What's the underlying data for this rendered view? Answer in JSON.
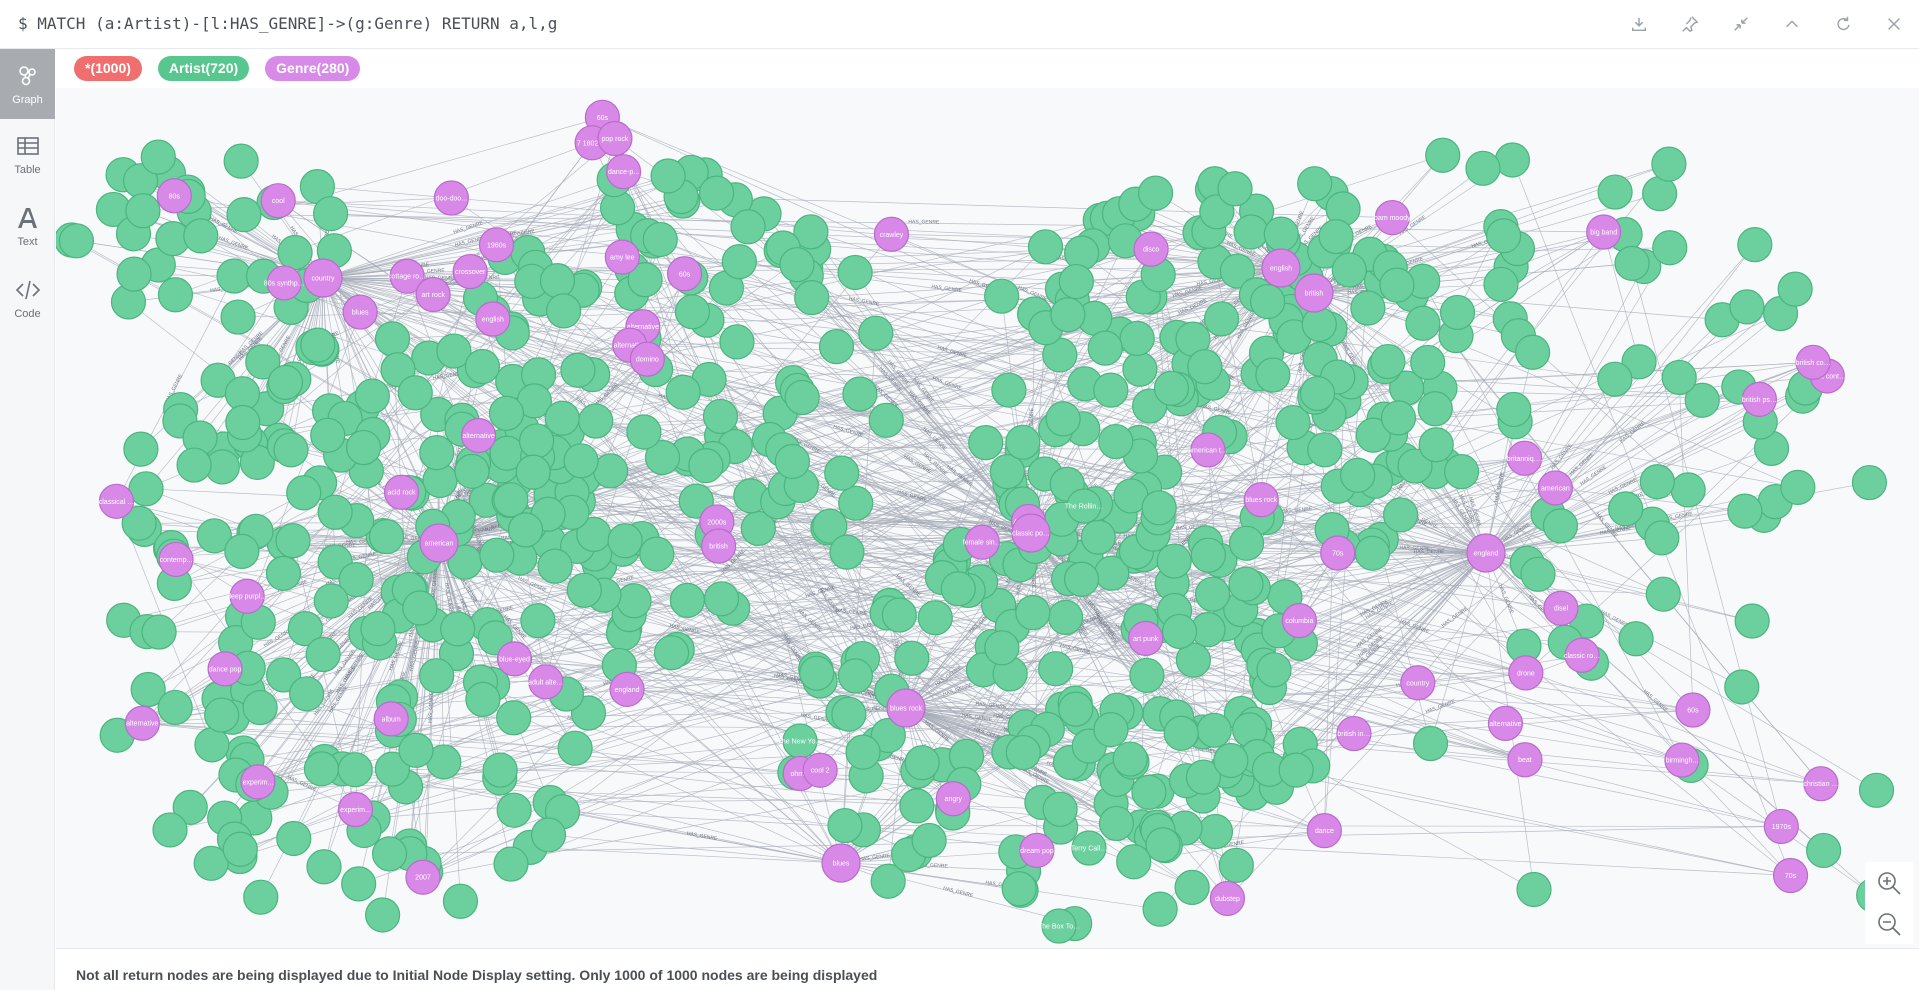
{
  "query": {
    "text": "$ MATCH (a:Artist)-[l:HAS_GENRE]->(g:Genre) RETURN a,l,g"
  },
  "toolbar": {
    "buttons": [
      {
        "name": "download-icon",
        "label": "download"
      },
      {
        "name": "pin-icon",
        "label": "pin"
      },
      {
        "name": "collapse-icon",
        "label": "collapse"
      },
      {
        "name": "chevron-up-icon",
        "label": "up"
      },
      {
        "name": "rerun-icon",
        "label": "rerun"
      },
      {
        "name": "close-icon",
        "label": "close"
      }
    ]
  },
  "sidebar": {
    "items": [
      {
        "label": "Graph",
        "icon": "graph-icon",
        "active": true
      },
      {
        "label": "Table",
        "icon": "table-icon",
        "active": false
      },
      {
        "label": "Text",
        "icon": "text-icon",
        "active": false
      },
      {
        "label": "Code",
        "icon": "code-icon",
        "active": false
      }
    ]
  },
  "legend": {
    "all": "*(1000)",
    "artist": "Artist(720)",
    "genre": "Genre(280)"
  },
  "colors": {
    "artist_node": "#6bcf9e",
    "genre_node": "#d889e8",
    "all_pill": "#f06e6e",
    "edge": "#a5abb6"
  },
  "graph": {
    "relationship_label": "HAS_GENRE",
    "hub_genres": [
      "american",
      "classic pop and rock",
      "british",
      "english",
      "country",
      "blues",
      "england",
      "blues rock"
    ],
    "genre_labels": [
      "cool",
      "contemp...",
      "disco",
      "american thrash",
      "doo-doo...",
      "album",
      "dream pop",
      "country",
      "cottage rock",
      "crossover",
      "ohmm",
      "alternative",
      "70s",
      "experim...",
      "alternative",
      "60s",
      "art punk",
      "alternative",
      "80s",
      "art rock",
      "60s",
      "experim...",
      "70s",
      "classic rock",
      "columbia",
      "american",
      "big band",
      "alternative",
      "2000s",
      "dance-p...",
      "amy lee",
      "bam moody",
      "angry",
      "1960s",
      "1970s",
      "adult contem...",
      "acid rock",
      "blues",
      "blues rock",
      "english",
      "british",
      "britanniq...",
      "alternative",
      "deep purple family",
      "60s",
      "drone",
      "blue-eyed",
      "crawley",
      "birmingh...",
      "england",
      "female singer",
      "british investor",
      "dance pop",
      "christian rock",
      "2007",
      "dance",
      "domino",
      "british colan",
      "dubstep",
      "disel",
      "80s synthpop",
      "british psycho...",
      "classical pop",
      "adult alternative pop ro...",
      "1 7 180249 153 2025",
      "Adam Ant",
      "pop rock",
      "cool 2",
      "beat"
    ],
    "artist_labels": [
      "The Rolling Stones",
      "The New York Dolls",
      "Terry Callier",
      "The Box Tops"
    ]
  },
  "footer": {
    "message": "Not all return nodes are being displayed due to Initial Node Display setting. Only 1000 of 1000 nodes are being displayed"
  },
  "zoom": {
    "in_label": "zoom in",
    "out_label": "zoom out"
  }
}
